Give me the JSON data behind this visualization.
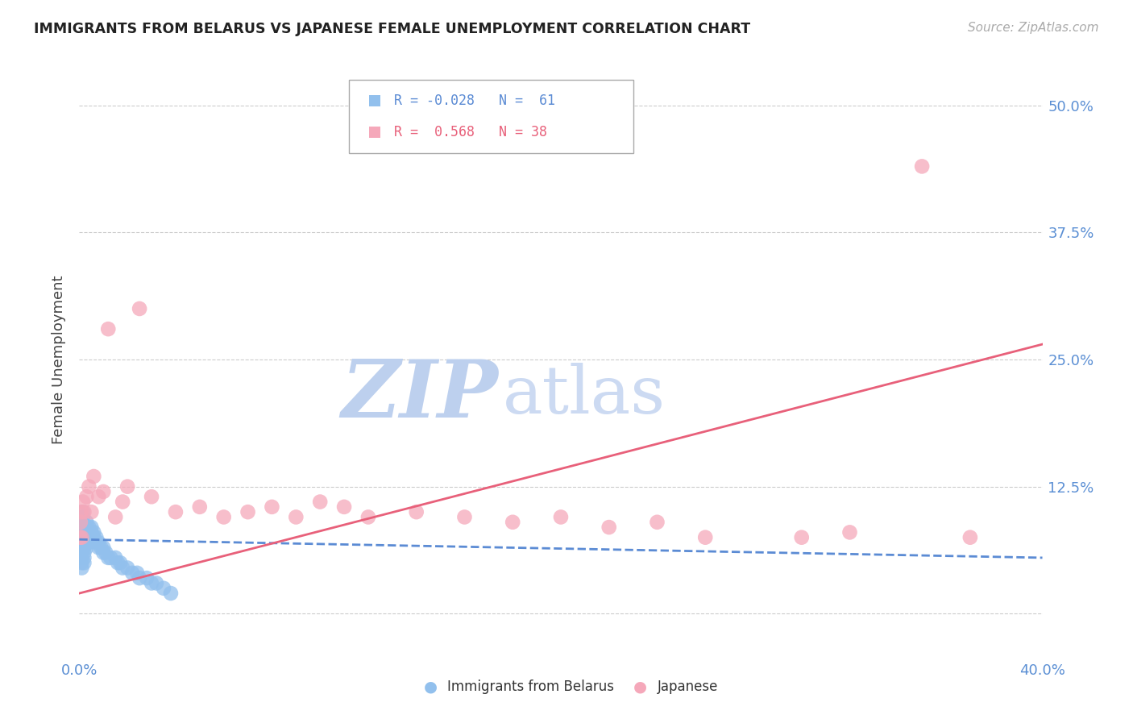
{
  "title": "IMMIGRANTS FROM BELARUS VS JAPANESE FEMALE UNEMPLOYMENT CORRELATION CHART",
  "source": "Source: ZipAtlas.com",
  "ylabel": "Female Unemployment",
  "xlim": [
    0.0,
    0.4
  ],
  "ylim": [
    -0.04,
    0.54
  ],
  "ytick_vals": [
    0.0,
    0.125,
    0.25,
    0.375,
    0.5
  ],
  "ytick_labels": [
    "",
    "12.5%",
    "25.0%",
    "37.5%",
    "50.0%"
  ],
  "xtick_vals": [
    0.0,
    0.1,
    0.2,
    0.3,
    0.4
  ],
  "xtick_labels": [
    "0.0%",
    "",
    "",
    "",
    "40.0%"
  ],
  "color_blue_scatter": "#92C0ED",
  "color_pink_scatter": "#F5A8BA",
  "color_blue_line": "#5B8BD4",
  "color_pink_line": "#E8607A",
  "color_axis_text": "#5B8FD4",
  "watermark_zip_color": "#BDD0EE",
  "watermark_atlas_color": "#CCDAF2",
  "background": "#FFFFFF",
  "figsize": [
    14.06,
    8.92
  ],
  "dpi": 100,
  "bel_x": [
    0.0002,
    0.0003,
    0.0005,
    0.0006,
    0.0007,
    0.0008,
    0.0009,
    0.001,
    0.001,
    0.001,
    0.001,
    0.001,
    0.001,
    0.001,
    0.0015,
    0.0015,
    0.002,
    0.002,
    0.002,
    0.002,
    0.002,
    0.002,
    0.002,
    0.003,
    0.003,
    0.003,
    0.003,
    0.003,
    0.003,
    0.004,
    0.004,
    0.004,
    0.004,
    0.005,
    0.005,
    0.005,
    0.006,
    0.006,
    0.007,
    0.007,
    0.008,
    0.008,
    0.009,
    0.01,
    0.01,
    0.011,
    0.012,
    0.013,
    0.015,
    0.016,
    0.017,
    0.018,
    0.02,
    0.022,
    0.024,
    0.025,
    0.028,
    0.03,
    0.032,
    0.035,
    0.038
  ],
  "bel_y": [
    0.065,
    0.07,
    0.06,
    0.075,
    0.08,
    0.055,
    0.085,
    0.09,
    0.07,
    0.065,
    0.06,
    0.055,
    0.05,
    0.045,
    0.1,
    0.095,
    0.08,
    0.075,
    0.07,
    0.065,
    0.06,
    0.055,
    0.05,
    0.09,
    0.085,
    0.08,
    0.075,
    0.07,
    0.065,
    0.085,
    0.08,
    0.075,
    0.07,
    0.085,
    0.08,
    0.075,
    0.08,
    0.075,
    0.075,
    0.07,
    0.07,
    0.065,
    0.065,
    0.065,
    0.06,
    0.06,
    0.055,
    0.055,
    0.055,
    0.05,
    0.05,
    0.045,
    0.045,
    0.04,
    0.04,
    0.035,
    0.035,
    0.03,
    0.03,
    0.025,
    0.02
  ],
  "jap_x": [
    0.0003,
    0.0005,
    0.0008,
    0.001,
    0.0015,
    0.002,
    0.003,
    0.004,
    0.005,
    0.006,
    0.008,
    0.01,
    0.012,
    0.015,
    0.018,
    0.02,
    0.025,
    0.03,
    0.04,
    0.05,
    0.06,
    0.07,
    0.08,
    0.09,
    0.1,
    0.11,
    0.12,
    0.14,
    0.16,
    0.18,
    0.2,
    0.22,
    0.24,
    0.26,
    0.3,
    0.32,
    0.35,
    0.37
  ],
  "jap_y": [
    0.075,
    0.09,
    0.1,
    0.075,
    0.11,
    0.1,
    0.115,
    0.125,
    0.1,
    0.135,
    0.115,
    0.12,
    0.28,
    0.095,
    0.11,
    0.125,
    0.3,
    0.115,
    0.1,
    0.105,
    0.095,
    0.1,
    0.105,
    0.095,
    0.11,
    0.105,
    0.095,
    0.1,
    0.095,
    0.09,
    0.095,
    0.085,
    0.09,
    0.075,
    0.075,
    0.08,
    0.44,
    0.075
  ],
  "pink_line_x0": 0.0,
  "pink_line_y0": 0.02,
  "pink_line_x1": 0.4,
  "pink_line_y1": 0.265,
  "blue_line_x0": 0.0,
  "blue_line_y0": 0.073,
  "blue_line_x1": 0.4,
  "blue_line_y1": 0.055
}
